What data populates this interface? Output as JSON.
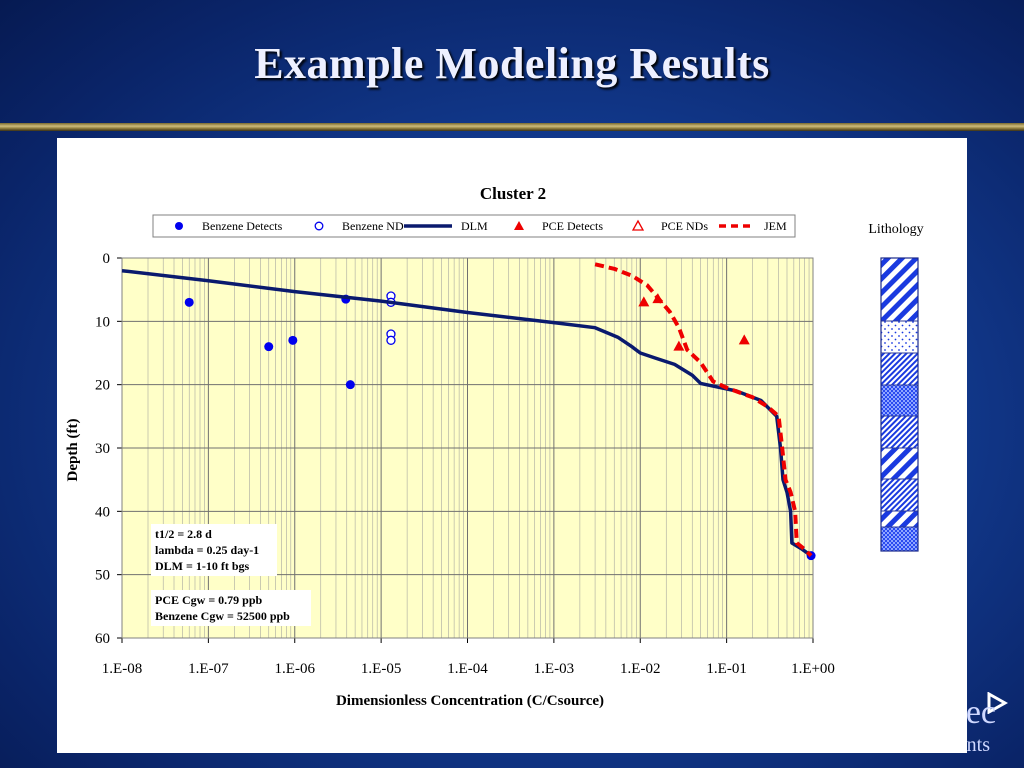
{
  "slide": {
    "title": "Example Modeling Results",
    "brand_text": "ec",
    "brand_sub": "nts"
  },
  "colors": {
    "plot_bg": "#ffffc8",
    "benzene": "#0000ee",
    "dlm": "#0a1a6e",
    "pce": "#ee0000"
  },
  "chart_data": {
    "type": "scatter",
    "title": "Cluster 2",
    "xlabel": "Dimensionless Concentration (C/Csource)",
    "ylabel": "Depth (ft)",
    "x_scale": "log",
    "xlim": [
      1e-08,
      1
    ],
    "ylim": [
      0,
      60
    ],
    "y_inverted": true,
    "grid": true,
    "legend_position": "top",
    "x_tick_labels": [
      "1.E-08",
      "1.E-07",
      "1.E-06",
      "1.E-05",
      "1.E-04",
      "1.E-03",
      "1.E-02",
      "1.E-01",
      "1.E+00"
    ],
    "y_tick_labels": [
      "0",
      "10",
      "20",
      "30",
      "40",
      "50",
      "60"
    ],
    "legend": [
      "Benzene Detects",
      "Benzene ND",
      "DLM",
      "PCE Detects",
      "PCE NDs",
      "JEM"
    ],
    "series": [
      {
        "name": "Benzene Detects",
        "kind": "scatter",
        "marker": "filled-circle",
        "color": "#0000ee",
        "points": [
          [
            6e-08,
            7
          ],
          [
            5e-07,
            14
          ],
          [
            9.5e-07,
            13
          ],
          [
            3.9e-06,
            6.5
          ],
          [
            4.4e-06,
            20
          ],
          [
            0.95,
            47
          ]
        ]
      },
      {
        "name": "Benzene ND",
        "kind": "scatter",
        "marker": "open-circle",
        "color": "#0000ee",
        "points": [
          [
            1.3e-05,
            6
          ],
          [
            1.3e-05,
            7
          ],
          [
            1.3e-05,
            12
          ],
          [
            1.3e-05,
            13
          ]
        ]
      },
      {
        "name": "DLM",
        "kind": "line",
        "style": "solid",
        "color": "#0a1a6e",
        "points": [
          [
            1e-08,
            2
          ],
          [
            1e-07,
            3.6
          ],
          [
            1e-06,
            5.3
          ],
          [
            1e-05,
            6.8
          ],
          [
            0.0001,
            8.6
          ],
          [
            0.001,
            10.2
          ],
          [
            0.003,
            11.0
          ],
          [
            0.0055,
            12.5
          ],
          [
            0.008,
            14.0
          ],
          [
            0.01,
            15.0
          ],
          [
            0.015,
            15.8
          ],
          [
            0.025,
            16.8
          ],
          [
            0.04,
            18.5
          ],
          [
            0.05,
            19.8
          ],
          [
            0.08,
            20.4
          ],
          [
            0.13,
            21.0
          ],
          [
            0.25,
            22.5
          ],
          [
            0.38,
            25.0
          ],
          [
            0.42,
            30.0
          ],
          [
            0.45,
            35.0
          ],
          [
            0.5,
            37.0
          ],
          [
            0.55,
            40.0
          ],
          [
            0.57,
            45.0
          ],
          [
            0.75,
            46.0
          ],
          [
            0.95,
            47.0
          ]
        ]
      },
      {
        "name": "PCE Detects",
        "kind": "scatter",
        "marker": "filled-triangle",
        "color": "#ee0000",
        "points": [
          [
            0.011,
            7
          ],
          [
            0.016,
            6.5
          ],
          [
            0.028,
            14
          ],
          [
            0.16,
            13
          ]
        ]
      },
      {
        "name": "PCE NDs",
        "kind": "scatter",
        "marker": "open-triangle",
        "color": "#ee0000",
        "points": []
      },
      {
        "name": "JEM",
        "kind": "line",
        "style": "dashed",
        "color": "#ee0000",
        "points": [
          [
            0.003,
            1.0
          ],
          [
            0.005,
            1.7
          ],
          [
            0.008,
            2.8
          ],
          [
            0.012,
            4.3
          ],
          [
            0.016,
            6.3
          ],
          [
            0.022,
            8.5
          ],
          [
            0.028,
            11.0
          ],
          [
            0.035,
            14.5
          ],
          [
            0.05,
            16.5
          ],
          [
            0.07,
            19.5
          ],
          [
            0.1,
            20.5
          ],
          [
            0.2,
            22.0
          ],
          [
            0.3,
            23.5
          ],
          [
            0.4,
            25.0
          ],
          [
            0.44,
            30.0
          ],
          [
            0.48,
            35.0
          ],
          [
            0.55,
            37.0
          ],
          [
            0.62,
            40.0
          ],
          [
            0.65,
            45.0
          ],
          [
            0.8,
            46.0
          ],
          [
            0.95,
            47.0
          ]
        ]
      }
    ],
    "annotations": [
      [
        "t1/2 = 2.8 d",
        "lambda = 0.25 day-1",
        "DLM = 1-10 ft bgs"
      ],
      [
        "PCE Cgw = 0.79 ppb",
        "Benzene Cgw = 52500 ppb"
      ]
    ]
  },
  "lithology": {
    "label": "Lithology",
    "layers": [
      "diagonal-hatch",
      "dotted",
      "fine-hatch",
      "checker",
      "fine-hatch",
      "diagonal-hatch",
      "fine-hatch",
      "diagonal-hatch",
      "checker"
    ]
  }
}
